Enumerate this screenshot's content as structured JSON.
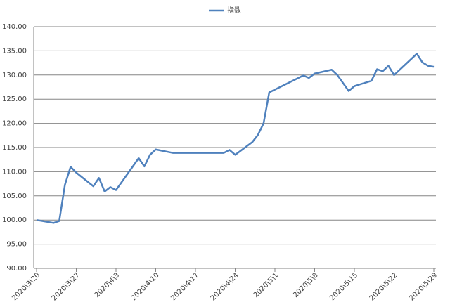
{
  "chart_data": {
    "type": "line",
    "x": [
      "2020-03-20",
      "2020-03-23",
      "2020-03-24",
      "2020-03-25",
      "2020-03-26",
      "2020-03-27",
      "2020-03-30",
      "2020-03-31",
      "2020-04-01",
      "2020-04-02",
      "2020-04-03",
      "2020-04-07",
      "2020-04-08",
      "2020-04-09",
      "2020-04-10",
      "2020-04-13",
      "2020-04-22",
      "2020-04-23",
      "2020-04-24",
      "2020-04-27",
      "2020-04-28",
      "2020-04-29",
      "2020-04-30",
      "2020-05-06",
      "2020-05-07",
      "2020-05-08",
      "2020-05-11",
      "2020-05-12",
      "2020-05-14",
      "2020-05-15",
      "2020-05-18",
      "2020-05-19",
      "2020-05-20",
      "2020-05-21",
      "2020-05-22",
      "2020-05-26",
      "2020-05-27",
      "2020-05-28",
      "2020-05-29"
    ],
    "series": [
      {
        "name": "指数",
        "color": "#4f81bd",
        "values": [
          100.0,
          99.4,
          99.8,
          107.3,
          111.0,
          109.8,
          107.0,
          108.7,
          105.9,
          106.8,
          106.2,
          112.8,
          111.1,
          113.5,
          114.6,
          113.9,
          113.9,
          114.5,
          113.5,
          116.1,
          117.6,
          120.0,
          126.4,
          129.9,
          129.4,
          130.3,
          131.1,
          130.0,
          126.7,
          127.7,
          128.8,
          131.2,
          130.8,
          131.9,
          130.0,
          134.4,
          132.6,
          131.9,
          131.7
        ]
      }
    ],
    "xlim": [
      "2020-03-20",
      "2020-05-29"
    ],
    "xticks": [
      {
        "value": "2020-03-20",
        "label": "2020\\3\\20"
      },
      {
        "value": "2020-03-27",
        "label": "2020\\3\\27"
      },
      {
        "value": "2020-04-03",
        "label": "2020\\4\\3"
      },
      {
        "value": "2020-04-10",
        "label": "2020\\4\\10"
      },
      {
        "value": "2020-04-17",
        "label": "2020\\4\\17"
      },
      {
        "value": "2020-04-24",
        "label": "2020\\4\\24"
      },
      {
        "value": "2020-05-01",
        "label": "2020\\5\\1"
      },
      {
        "value": "2020-05-08",
        "label": "2020\\5\\8"
      },
      {
        "value": "2020-05-15",
        "label": "2020\\5\\15"
      },
      {
        "value": "2020-05-22",
        "label": "2020\\5\\22"
      },
      {
        "value": "2020-05-29",
        "label": "2020\\5\\29"
      }
    ],
    "ylim": [
      90,
      140
    ],
    "yticks": [
      {
        "value": 90,
        "label": "90.00"
      },
      {
        "value": 95,
        "label": "95.00"
      },
      {
        "value": 100,
        "label": "100.00"
      },
      {
        "value": 105,
        "label": "105.00"
      },
      {
        "value": 110,
        "label": "110.00"
      },
      {
        "value": 115,
        "label": "115.00"
      },
      {
        "value": 120,
        "label": "120.00"
      },
      {
        "value": 125,
        "label": "125.00"
      },
      {
        "value": 130,
        "label": "130.00"
      },
      {
        "value": 135,
        "label": "135.00"
      },
      {
        "value": 140,
        "label": "140.00"
      }
    ],
    "grid": true,
    "legend": "top"
  }
}
